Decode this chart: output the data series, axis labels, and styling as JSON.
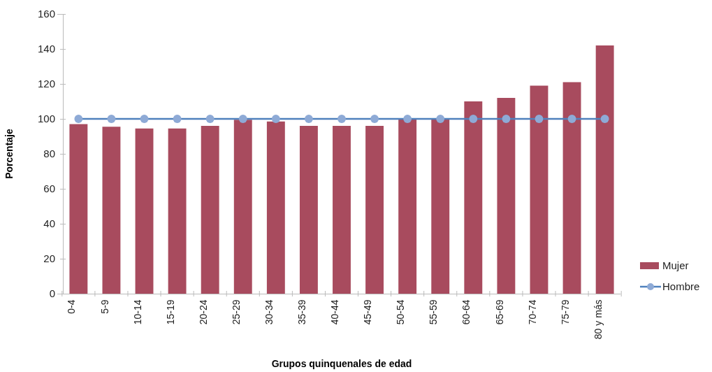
{
  "chart_data": {
    "type": "bar",
    "xlabel": "Grupos quinquenales de edad",
    "ylabel": "Porcentaje",
    "categories": [
      "0-4",
      "5-9",
      "10-14",
      "15-19",
      "20-24",
      "25-29",
      "30-34",
      "35-39",
      "40-44",
      "45-49",
      "50-54",
      "55-59",
      "60-64",
      "65-69",
      "70-74",
      "75-79",
      "80 y más"
    ],
    "series": [
      {
        "name": "Mujer",
        "color": "#a84b5e",
        "values": [
          97,
          95.5,
          94.5,
          94.5,
          96,
          99.5,
          98.5,
          96,
          96,
          96,
          100,
          100,
          110,
          112,
          119,
          121,
          142
        ]
      },
      {
        "name": "Hombre",
        "type": "line",
        "color": "#4f81bd",
        "marker": "circle",
        "values": [
          100,
          100,
          100,
          100,
          100,
          100,
          100,
          100,
          100,
          100,
          100,
          100,
          100,
          100,
          100,
          100,
          100
        ]
      }
    ],
    "ylim": [
      0,
      160
    ],
    "yticks": [
      0,
      20,
      40,
      60,
      80,
      100,
      120,
      140,
      160
    ],
    "grid": false,
    "legend": "bottom right"
  }
}
